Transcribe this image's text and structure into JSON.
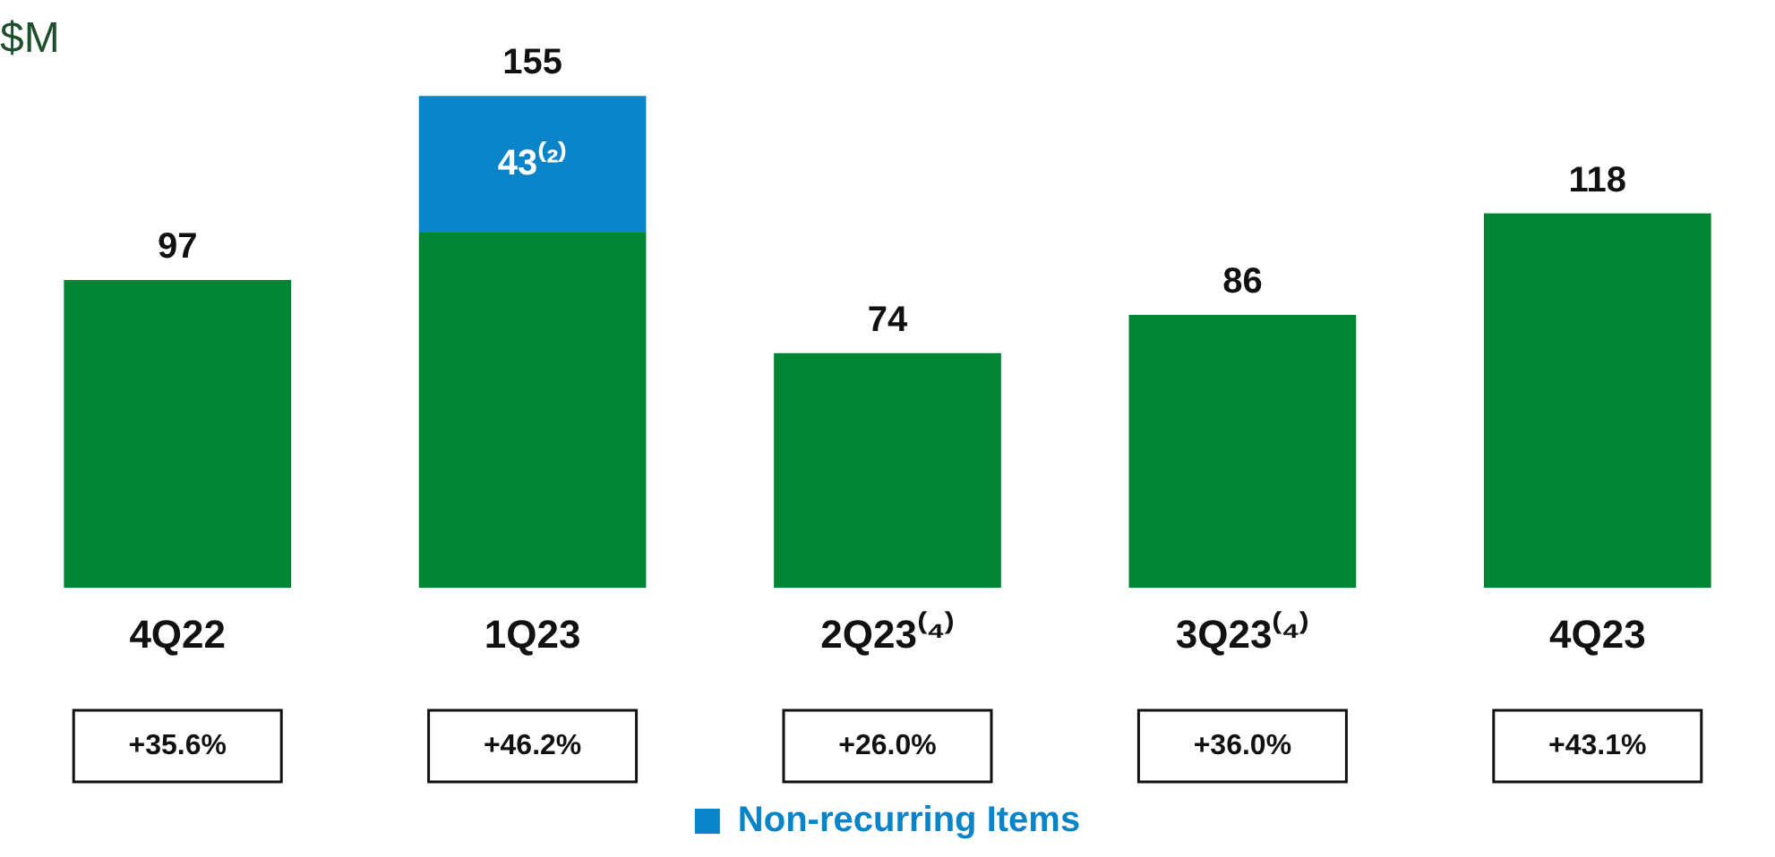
{
  "chart_data": {
    "type": "bar",
    "subtitle": "$M",
    "categories": [
      "4Q22",
      "1Q23",
      "2Q23⁽⁴⁾",
      "3Q23⁽⁴⁾",
      "4Q23"
    ],
    "stacked": true,
    "tick_labels": "x",
    "grid": false,
    "legend": "bottom",
    "series": [
      {
        "color": "#008534",
        "values": [
          97,
          112,
          74,
          86,
          118
        ],
        "value_labels": [
          "97",
          null,
          "74",
          "86",
          "118"
        ]
      },
      {
        "name": "Non-recurring Items",
        "color": "#0a84c8",
        "values": [
          null,
          43,
          null,
          null,
          null
        ],
        "value_labels": [
          null,
          "43⁽²⁾",
          null,
          null,
          null
        ]
      }
    ],
    "totals": [
      null,
      "155",
      null,
      null,
      null
    ],
    "annotations": [
      "+35.6%",
      "+46.2%",
      "+26.0%",
      "+36.0%",
      "+43.1%"
    ]
  }
}
